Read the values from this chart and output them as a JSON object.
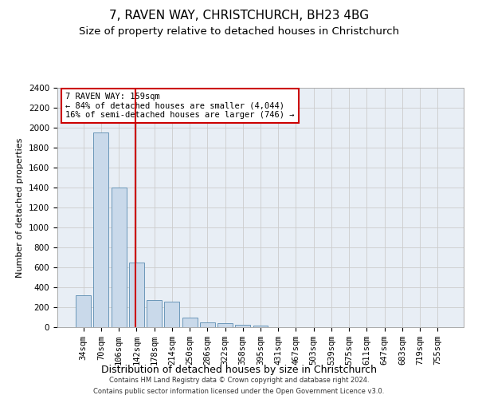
{
  "title1": "7, RAVEN WAY, CHRISTCHURCH, BH23 4BG",
  "title2": "Size of property relative to detached houses in Christchurch",
  "xlabel": "Distribution of detached houses by size in Christchurch",
  "ylabel": "Number of detached properties",
  "categories": [
    "34sqm",
    "70sqm",
    "106sqm",
    "142sqm",
    "178sqm",
    "214sqm",
    "250sqm",
    "286sqm",
    "322sqm",
    "358sqm",
    "395sqm",
    "431sqm",
    "467sqm",
    "503sqm",
    "539sqm",
    "575sqm",
    "611sqm",
    "647sqm",
    "683sqm",
    "719sqm",
    "755sqm"
  ],
  "values": [
    320,
    1950,
    1400,
    650,
    270,
    260,
    100,
    45,
    40,
    25,
    20,
    0,
    0,
    0,
    0,
    0,
    0,
    0,
    0,
    0,
    0
  ],
  "bar_color": "#c9d9ea",
  "bar_edge_color": "#5a8bb0",
  "vline_color": "#cc0000",
  "annotation_text": "7 RAVEN WAY: 159sqm\n← 84% of detached houses are smaller (4,044)\n16% of semi-detached houses are larger (746) →",
  "annotation_box_color": "#ffffff",
  "annotation_box_edge": "#cc0000",
  "ylim": [
    0,
    2400
  ],
  "yticks": [
    0,
    200,
    400,
    600,
    800,
    1000,
    1200,
    1400,
    1600,
    1800,
    2000,
    2200,
    2400
  ],
  "grid_color": "#cccccc",
  "footer1": "Contains HM Land Registry data © Crown copyright and database right 2024.",
  "footer2": "Contains public sector information licensed under the Open Government Licence v3.0.",
  "bg_color": "#ffffff",
  "plot_bg_color": "#e8eef5",
  "title1_fontsize": 11,
  "title2_fontsize": 9.5,
  "xlabel_fontsize": 9,
  "ylabel_fontsize": 8,
  "tick_fontsize": 7.5,
  "footer_fontsize": 6,
  "annot_fontsize": 7.5
}
